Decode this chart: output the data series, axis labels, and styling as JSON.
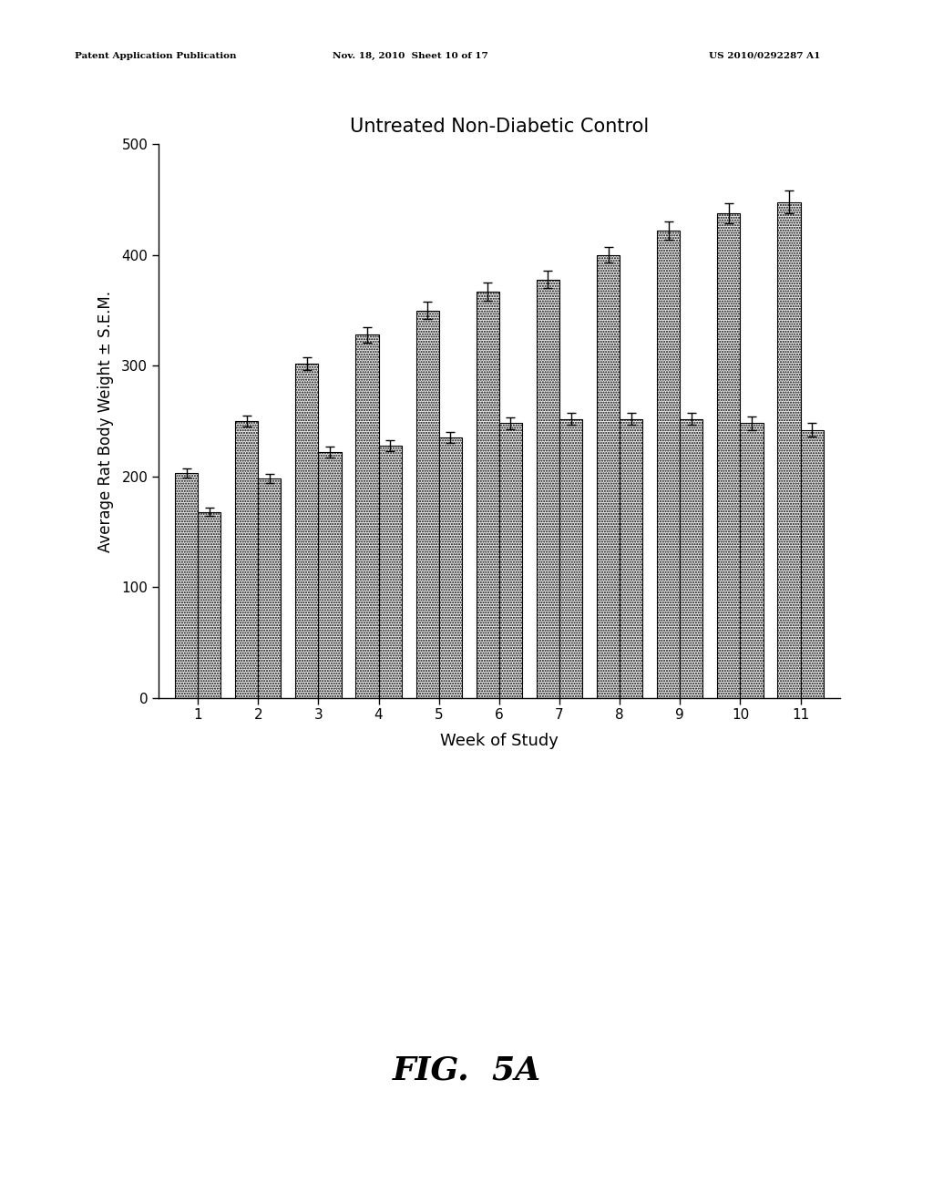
{
  "title": "Untreated Non-Diabetic Control",
  "xlabel": "Week of Study",
  "ylabel": "Average Rat Body Weight ± S.E.M.",
  "weeks": [
    1,
    2,
    3,
    4,
    5,
    6,
    7,
    8,
    9,
    10,
    11
  ],
  "bar1_values": [
    203,
    250,
    302,
    328,
    350,
    367,
    378,
    400,
    422,
    438,
    448
  ],
  "bar1_errors": [
    4,
    5,
    6,
    7,
    8,
    8,
    8,
    7,
    8,
    9,
    10
  ],
  "bar2_values": [
    168,
    198,
    222,
    228,
    235,
    248,
    252,
    252,
    252,
    248,
    242
  ],
  "bar2_errors": [
    4,
    4,
    5,
    5,
    5,
    5,
    5,
    5,
    5,
    6,
    6
  ],
  "ylim": [
    0,
    500
  ],
  "yticks": [
    0,
    100,
    200,
    300,
    400,
    500
  ],
  "bar_width": 0.38,
  "background_color": "#ffffff",
  "header_left": "Patent Application Publication",
  "header_mid": "Nov. 18, 2010  Sheet 10 of 17",
  "header_right": "US 2010/0292287 A1",
  "footer_text": "FIG.  5A",
  "title_fontsize": 15,
  "axis_fontsize": 12,
  "tick_fontsize": 11
}
